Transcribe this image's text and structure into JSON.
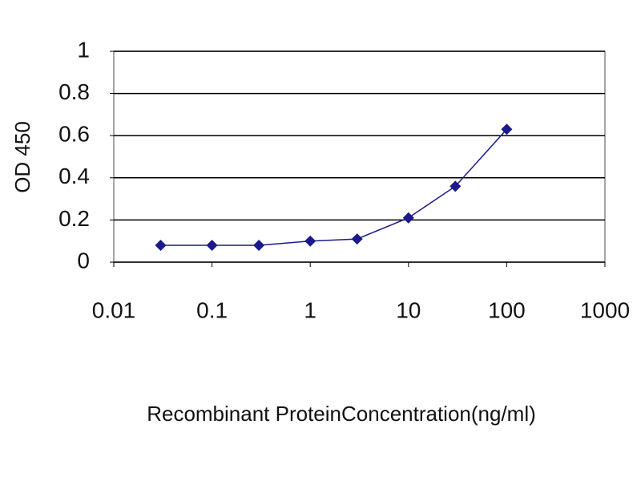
{
  "chart_data": {
    "type": "line",
    "x_label": "Recombinant ProteinConcentration(ng/ml)",
    "y_label": "OD 450",
    "x": [
      0.03,
      0.1,
      0.3,
      1,
      3,
      10,
      30,
      100
    ],
    "series": [
      {
        "color": "#1a1a8c",
        "values": [
          0.08,
          0.08,
          0.08,
          0.1,
          0.11,
          0.21,
          0.36,
          0.63
        ]
      }
    ],
    "xscale": "log",
    "xlim": [
      0.01,
      1000
    ],
    "xticks": [
      0.01,
      0.1,
      1,
      10,
      100,
      1000
    ],
    "ylim": [
      0,
      1
    ],
    "yticks": [
      0,
      0.2,
      0.4,
      0.6,
      0.8,
      1
    ],
    "grid": true
  }
}
